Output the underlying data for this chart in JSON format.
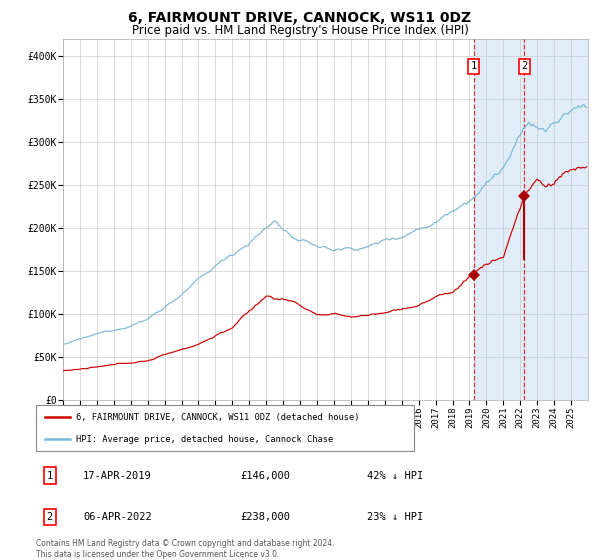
{
  "title": "6, FAIRMOUNT DRIVE, CANNOCK, WS11 0DZ",
  "subtitle": "Price paid vs. HM Land Registry's House Price Index (HPI)",
  "title_fontsize": 10,
  "subtitle_fontsize": 8.5,
  "ylim": [
    0,
    420000
  ],
  "yticks": [
    0,
    50000,
    100000,
    150000,
    200000,
    250000,
    300000,
    350000,
    400000
  ],
  "ytick_labels": [
    "£0",
    "£50K",
    "£100K",
    "£150K",
    "£200K",
    "£250K",
    "£300K",
    "£350K",
    "£400K"
  ],
  "hpi_color": "#7bb8d4",
  "price_color": "#cc0000",
  "marker_color": "#aa0000",
  "bg_color": "#ffffff",
  "grid_color": "#cccccc",
  "shade_color": "#e0ecf8",
  "sale1_date": "17-APR-2019",
  "sale1_price": 146000,
  "sale1_pct": "42%",
  "sale2_date": "06-APR-2022",
  "sale2_price": 238000,
  "sale2_pct": "23%",
  "legend_label1": "6, FAIRMOUNT DRIVE, CANNOCK, WS11 0DZ (detached house)",
  "legend_label2": "HPI: Average price, detached house, Cannock Chase",
  "footnote": "Contains HM Land Registry data © Crown copyright and database right 2024.\nThis data is licensed under the Open Government Licence v3.0.",
  "xstart_year": 1995,
  "xend_year": 2025
}
